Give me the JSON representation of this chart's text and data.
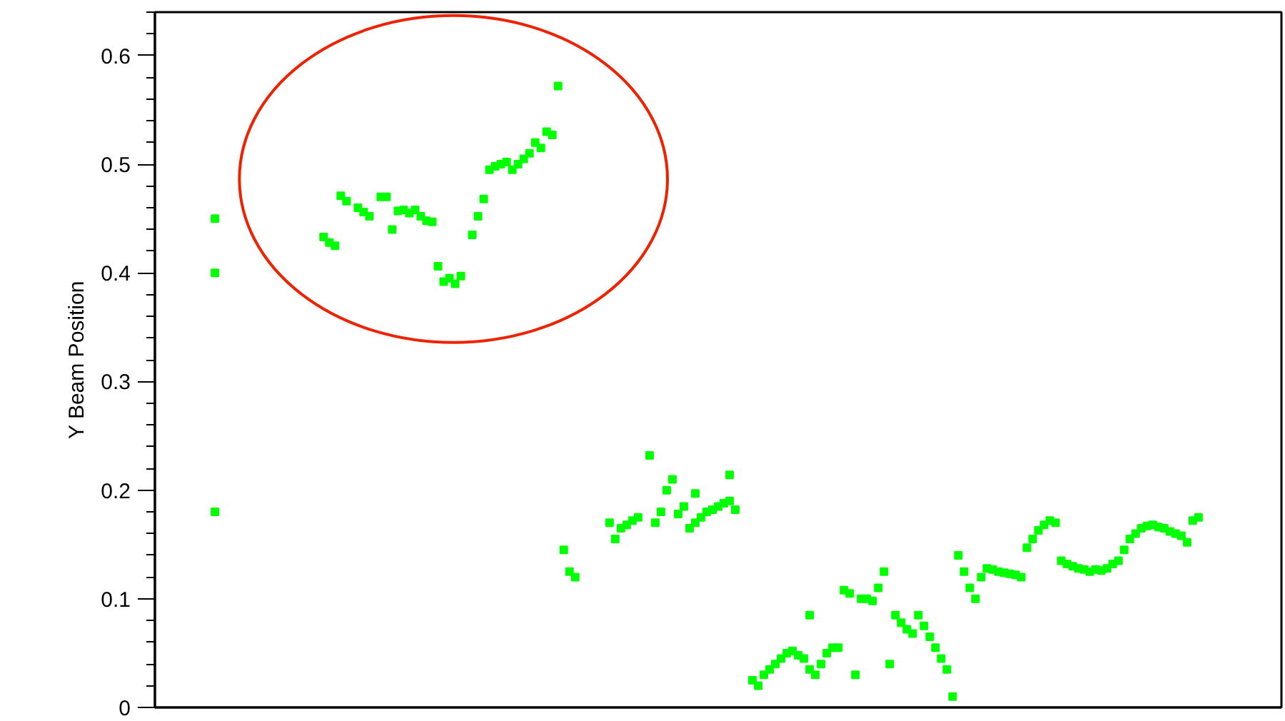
{
  "chart_data": {
    "type": "scatter",
    "ylabel": "Y Beam Position",
    "categories": [
      null,
      null,
      null,
      null,
      null,
      null,
      null,
      null,
      null,
      null,
      null,
      null,
      null,
      null,
      null,
      null,
      null,
      null,
      null,
      null,
      null,
      null,
      null,
      null,
      null,
      null,
      null,
      null,
      null,
      null,
      null,
      null,
      null,
      null,
      null,
      null,
      null,
      null,
      null,
      null,
      null,
      null,
      null,
      null,
      null,
      null,
      null,
      null,
      null,
      null,
      null,
      null,
      null,
      null,
      null,
      null,
      null,
      null,
      null,
      null,
      null,
      null,
      null,
      null,
      null,
      null,
      null,
      null,
      null,
      null,
      null,
      null,
      null,
      null,
      null,
      null,
      null,
      null,
      null,
      null,
      null,
      null,
      null,
      null,
      null,
      null,
      null,
      null,
      null,
      null,
      null,
      null,
      null,
      null,
      null,
      null,
      null,
      null,
      null,
      null,
      null,
      null,
      null,
      null,
      null,
      null,
      null,
      null,
      null,
      null,
      null,
      null,
      null,
      null,
      null,
      null,
      null,
      null,
      null,
      null,
      null,
      null,
      null,
      null,
      null,
      null,
      null,
      null,
      null,
      null,
      null,
      null,
      null,
      null,
      null,
      null,
      null,
      null,
      null,
      null,
      null,
      null,
      null,
      null,
      null,
      null,
      null,
      null,
      null,
      null,
      null,
      null,
      null,
      null,
      null,
      null,
      null,
      null,
      null,
      null,
      null,
      null,
      null,
      null,
      null,
      null,
      null,
      null,
      null,
      null,
      null,
      null,
      null,
      null,
      null,
      null,
      null,
      null,
      null,
      null,
      null,
      null,
      null,
      null,
      null,
      null,
      null,
      null,
      null,
      null,
      null,
      null,
      null,
      null,
      null,
      null,
      null
    ],
    "series": [
      {
        "color": "#00ff00",
        "values": [
          null,
          null,
          null,
          null,
          null,
          null,
          null,
          null,
          null,
          null,
          0.4,
          null,
          null,
          null,
          null,
          null,
          null,
          null,
          null,
          null,
          null,
          null,
          null,
          null,
          null,
          null,
          null,
          null,
          null,
          0.433,
          0.428,
          0.425,
          0.471,
          0.466,
          null,
          0.46,
          0.456,
          0.452,
          null,
          0.47,
          0.47,
          0.44,
          0.457,
          0.458,
          0.455,
          0.458,
          0.452,
          0.448,
          0.447,
          0.406,
          0.392,
          0.395,
          0.39,
          0.397,
          null,
          0.435,
          0.452,
          0.468,
          0.495,
          0.498,
          0.5,
          0.502,
          0.495,
          0.5,
          0.505,
          0.51,
          0.52,
          0.515,
          0.53,
          0.527,
          0.572,
          0.145,
          0.125,
          0.12,
          null,
          null,
          null,
          null,
          null,
          0.17,
          0.155,
          0.165,
          0.168,
          0.172,
          0.175,
          null,
          0.232,
          0.17,
          0.18,
          0.2,
          0.21,
          0.178,
          0.185,
          0.165,
          0.17,
          0.175,
          0.18,
          0.182,
          0.185,
          0.188,
          0.214,
          0.182,
          null,
          null,
          0.025,
          0.02,
          0.03,
          0.035,
          0.04,
          0.045,
          0.05,
          0.052,
          0.048,
          0.045,
          0.035,
          0.03,
          0.04,
          0.05,
          0.055,
          0.055,
          0.108,
          0.105,
          0.03,
          0.1,
          0.1,
          0.098,
          0.11,
          0.125,
          0.04,
          0.085,
          0.078,
          0.072,
          0.068,
          0.085,
          0.075,
          0.065,
          0.055,
          0.045,
          0.035,
          0.01,
          0.14,
          0.125,
          0.11,
          0.1,
          0.12,
          0.128,
          0.127,
          0.125,
          0.124,
          0.123,
          0.122,
          0.12,
          0.147,
          0.155,
          0.163,
          0.168,
          0.172,
          0.17,
          0.135,
          0.132,
          0.13,
          0.128,
          0.127,
          0.125,
          0.127,
          0.126,
          0.128,
          0.132,
          0.135,
          0.145,
          0.155,
          0.16,
          0.165,
          0.167,
          0.168,
          0.166,
          0.165,
          0.162,
          0.16,
          0.158,
          0.152,
          0.172,
          0.175,
          null,
          null,
          null,
          null,
          null,
          null,
          null,
          null,
          null,
          null,
          null,
          null,
          null,
          null
        ]
      },
      {
        "color": "#00ff00",
        "values": [
          null,
          null,
          null,
          null,
          null,
          null,
          null,
          null,
          null,
          null,
          0.45,
          null,
          null,
          null,
          null,
          null,
          null,
          null,
          null,
          null,
          null,
          null,
          null,
          null,
          null,
          null,
          null,
          null,
          null,
          null,
          null,
          null,
          null,
          null,
          null,
          null,
          null,
          null,
          null,
          null,
          null,
          null,
          null,
          null,
          null,
          null,
          null,
          null,
          null,
          null,
          null,
          null,
          null,
          null,
          null,
          null,
          null,
          null,
          null,
          null,
          null,
          null,
          null,
          null,
          null,
          null,
          null,
          null,
          null,
          null,
          null,
          null,
          null,
          null,
          null,
          null,
          null,
          null,
          null,
          null,
          null,
          null,
          null,
          null,
          null,
          null,
          null,
          null,
          null,
          null,
          null,
          null,
          null,
          null,
          0.197,
          null,
          null,
          null,
          null,
          null,
          0.19,
          null,
          null,
          null,
          null,
          null,
          null,
          null,
          null,
          null,
          null,
          null,
          null,
          null,
          0.085,
          null,
          null,
          null,
          null,
          null,
          null,
          null,
          null,
          null,
          null,
          null,
          null,
          null,
          null,
          null,
          null,
          null,
          null,
          null,
          null,
          null,
          null,
          null,
          null,
          null,
          null,
          null,
          null,
          null,
          null,
          null,
          null,
          null,
          null,
          null,
          null,
          null,
          null,
          null,
          null,
          null,
          null,
          null,
          null,
          null,
          null,
          null,
          null,
          null,
          null,
          null,
          null,
          null,
          null,
          null,
          null,
          null,
          null,
          null,
          null,
          null,
          null,
          null,
          null,
          null,
          null,
          null,
          null,
          null,
          null,
          null,
          null,
          null,
          null,
          null,
          null,
          null,
          null,
          null,
          null,
          null,
          null
        ]
      },
      {
        "color": "#00ff00",
        "values": [
          null,
          null,
          null,
          null,
          null,
          null,
          null,
          null,
          null,
          null,
          0.18,
          null,
          null,
          null,
          null,
          null,
          null,
          null,
          null,
          null,
          null,
          null,
          null,
          null,
          null,
          null,
          null,
          null,
          null,
          null,
          null,
          null,
          null,
          null,
          null,
          null,
          null,
          null,
          null,
          null,
          null,
          null,
          null,
          null,
          null,
          null,
          null,
          null,
          null,
          null,
          null,
          null,
          null,
          null,
          null,
          null,
          null,
          null,
          null,
          null,
          null,
          null,
          null,
          null,
          null,
          null,
          null,
          null,
          null,
          null,
          null,
          null,
          null,
          null,
          null,
          null,
          null,
          null,
          null,
          null,
          null,
          null,
          null,
          null,
          null,
          null,
          null,
          null,
          null,
          null,
          null,
          null,
          null,
          null,
          null,
          null,
          null,
          null,
          null,
          null,
          null,
          null,
          null,
          null,
          null,
          null,
          null,
          null,
          null,
          null,
          null,
          null,
          null,
          null,
          null,
          null,
          null,
          null,
          null,
          null,
          null,
          null,
          null,
          null,
          null,
          null,
          null,
          null,
          null,
          null,
          null,
          null,
          null,
          null,
          null,
          null,
          null,
          null,
          null,
          null,
          null,
          null,
          null,
          null,
          null,
          null,
          null,
          null,
          null,
          null,
          null,
          null,
          null,
          null,
          null,
          null,
          null,
          null,
          null,
          null,
          null,
          null,
          null,
          null,
          null,
          null,
          null,
          null,
          null,
          null,
          null,
          null,
          null,
          null,
          null,
          null,
          null,
          null,
          null,
          null,
          null,
          null,
          null,
          null,
          null,
          null,
          null,
          null,
          null,
          null,
          null,
          null,
          null,
          null,
          null,
          null,
          null
        ]
      }
    ],
    "ylim": [
      0,
      0.64
    ],
    "yticks": [
      0,
      0.1,
      0.2,
      0.3,
      0.4,
      0.5,
      0.6
    ],
    "marker": "square",
    "grid": false
  }
}
